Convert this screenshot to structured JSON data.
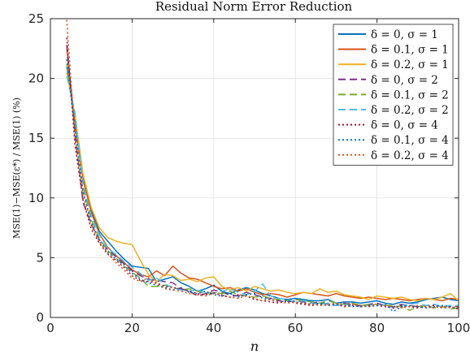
{
  "chart_data": {
    "type": "line",
    "title": "Residual Norm Error Reduction",
    "xlabel": "n",
    "ylabel": "MSE(1)−MSE(ε*) / MSE(1)  (%)",
    "xlim": [
      0,
      100
    ],
    "ylim": [
      0,
      25
    ],
    "xticks": [
      0,
      20,
      40,
      60,
      80,
      100
    ],
    "yticks": [
      0,
      5,
      10,
      15,
      20,
      25
    ],
    "grid": true,
    "legend_position": "top-right",
    "x": [
      4,
      6,
      8,
      10,
      12,
      14,
      16,
      18,
      20,
      22,
      24,
      26,
      28,
      30,
      32,
      34,
      36,
      38,
      40,
      42,
      44,
      46,
      48,
      50,
      52,
      54,
      56,
      58,
      60,
      62,
      64,
      66,
      68,
      70,
      72,
      74,
      76,
      78,
      80,
      82,
      84,
      86,
      88,
      90,
      92,
      94,
      96,
      98,
      100
    ],
    "series": [
      {
        "name": "δ = 0, σ = 1",
        "color": "#0072bd",
        "dash": "solid",
        "values": [
          21.0,
          16.5,
          11.8,
          9.0,
          7.2,
          6.4,
          5.6,
          4.9,
          4.3,
          4.2,
          4.1,
          3.0,
          3.2,
          3.4,
          2.9,
          2.6,
          2.2,
          2.4,
          2.7,
          2.2,
          2.0,
          2.3,
          2.5,
          2.3,
          2.0,
          1.8,
          1.6,
          1.5,
          1.6,
          1.5,
          1.4,
          1.4,
          1.5,
          1.2,
          1.3,
          1.3,
          1.2,
          1.3,
          1.4,
          1.2,
          1.1,
          1.3,
          1.2,
          1.3,
          1.5,
          1.6,
          1.7,
          1.5,
          1.4
        ]
      },
      {
        "name": "δ = 0.1, σ = 1",
        "color": "#d95319",
        "dash": "solid",
        "values": [
          22.5,
          16.2,
          11.5,
          8.8,
          7.0,
          5.9,
          5.2,
          4.6,
          4.0,
          3.6,
          3.4,
          3.9,
          3.5,
          4.3,
          3.7,
          3.3,
          3.2,
          2.9,
          2.6,
          2.4,
          2.5,
          2.2,
          2.4,
          2.1,
          1.9,
          2.0,
          1.9,
          1.7,
          1.9,
          2.1,
          2.0,
          1.9,
          1.8,
          2.0,
          1.8,
          1.7,
          1.6,
          1.7,
          1.6,
          1.5,
          1.6,
          1.5,
          1.4,
          1.5,
          1.6,
          1.5,
          1.4,
          1.6,
          1.5
        ]
      },
      {
        "name": "δ = 0.2, σ = 1",
        "color": "#edb120",
        "dash": "solid",
        "values": [
          20.5,
          17.0,
          12.0,
          9.2,
          7.5,
          6.7,
          6.4,
          6.2,
          6.1,
          4.8,
          3.6,
          3.0,
          3.6,
          3.5,
          3.1,
          3.2,
          3.0,
          3.3,
          3.4,
          2.6,
          2.3,
          2.5,
          2.2,
          2.6,
          2.4,
          2.2,
          2.3,
          2.1,
          2.0,
          2.1,
          2.0,
          2.4,
          2.1,
          2.2,
          1.9,
          1.8,
          1.7,
          1.5,
          1.8,
          1.7,
          1.6,
          1.7,
          1.5,
          1.4,
          1.6,
          1.5,
          1.7,
          2.0,
          1.4
        ]
      },
      {
        "name": "δ = 0, σ = 2",
        "color": "#7e2f8e",
        "dash": "dash",
        "values": [
          22.8,
          15.5,
          9.6,
          7.8,
          6.5,
          5.7,
          5.1,
          4.5,
          3.9,
          3.5,
          3.2,
          3.1,
          3.0,
          2.9,
          2.4,
          2.2,
          1.8,
          2.0,
          2.3,
          2.1,
          1.9,
          1.8,
          2.1,
          1.9,
          1.7,
          1.6,
          1.4,
          1.3,
          1.4,
          1.3,
          1.2,
          1.3,
          1.1,
          1.0,
          1.2,
          1.1,
          1.0,
          1.1,
          1.2,
          1.0,
          0.9,
          1.1,
          1.0,
          0.9,
          1.0,
          1.1,
          0.9,
          1.0,
          0.9
        ]
      },
      {
        "name": "δ = 0.1, σ = 2",
        "color": "#77ac30",
        "dash": "dash",
        "values": [
          21.2,
          16.8,
          10.8,
          8.2,
          6.6,
          5.6,
          5.0,
          4.3,
          3.8,
          3.3,
          2.6,
          2.6,
          2.7,
          2.5,
          2.3,
          2.4,
          2.2,
          2.0,
          2.1,
          2.0,
          2.2,
          1.9,
          1.8,
          1.7,
          1.8,
          1.6,
          1.5,
          1.4,
          1.5,
          1.4,
          1.3,
          1.2,
          1.4,
          1.2,
          1.1,
          1.2,
          1.0,
          1.1,
          1.1,
          1.0,
          1.0,
          0.9,
          0.6,
          0.9,
          1.0,
          0.8,
          0.9,
          0.7,
          0.8
        ]
      },
      {
        "name": "δ = 0.2, σ = 2",
        "color": "#4dbeee",
        "dash": "dash",
        "values": [
          20.2,
          17.2,
          11.2,
          8.5,
          6.9,
          5.8,
          5.3,
          4.7,
          4.2,
          3.7,
          3.1,
          3.3,
          2.8,
          2.5,
          2.3,
          2.2,
          2.3,
          2.1,
          2.0,
          2.2,
          2.4,
          2.1,
          1.9,
          2.2,
          2.8,
          1.8,
          1.6,
          1.5,
          1.3,
          1.4,
          1.2,
          1.1,
          1.2,
          1.0,
          1.1,
          1.0,
          0.9,
          1.0,
          1.1,
          1.0,
          0.8,
          1.0,
          1.1,
          1.2,
          1.0,
          1.1,
          0.9,
          1.0,
          1.0
        ]
      },
      {
        "name": "δ = 0, σ = 4",
        "color": "#a2142f",
        "dash": "dot",
        "values": [
          23.4,
          14.5,
          9.8,
          7.4,
          6.2,
          5.3,
          4.8,
          4.2,
          3.5,
          3.1,
          3.0,
          2.9,
          2.6,
          2.5,
          2.4,
          2.2,
          2.0,
          1.9,
          2.1,
          1.8,
          1.7,
          1.9,
          1.8,
          1.5,
          1.4,
          1.3,
          1.2,
          1.4,
          1.2,
          1.1,
          1.0,
          1.1,
          1.0,
          1.1,
          0.9,
          1.0,
          0.9,
          1.0,
          1.0,
          0.9,
          0.8,
          1.0,
          0.9,
          0.8,
          0.9,
          1.0,
          0.8,
          0.9,
          0.7
        ]
      },
      {
        "name": "δ = 0.1, σ = 4",
        "color": "#0072bd",
        "dash": "dot",
        "values": [
          21.6,
          15.8,
          10.5,
          8.0,
          6.4,
          5.5,
          4.9,
          4.4,
          3.7,
          3.2,
          2.9,
          2.7,
          2.5,
          2.3,
          2.5,
          2.1,
          2.0,
          2.2,
          1.9,
          1.8,
          2.0,
          1.7,
          1.9,
          2.0,
          1.6,
          1.5,
          1.3,
          1.4,
          1.3,
          1.2,
          1.1,
          1.2,
          1.0,
          1.1,
          1.0,
          0.9,
          1.0,
          0.9,
          1.0,
          1.1,
          0.5,
          0.9,
          1.0,
          0.9,
          0.8,
          0.9,
          1.0,
          0.9,
          0.8
        ]
      },
      {
        "name": "δ = 0.2, σ = 4",
        "color": "#d95319",
        "dash": "dot",
        "values": [
          24.9,
          15.0,
          10.2,
          7.7,
          6.3,
          5.4,
          4.6,
          4.0,
          3.3,
          3.0,
          3.3,
          2.8,
          2.4,
          2.3,
          2.2,
          2.0,
          1.9,
          1.8,
          2.0,
          1.9,
          1.7,
          1.6,
          1.8,
          1.6,
          1.4,
          1.5,
          1.3,
          1.2,
          1.3,
          1.2,
          1.1,
          1.0,
          1.1,
          1.2,
          1.0,
          1.1,
          1.0,
          0.9,
          1.1,
          1.0,
          0.9,
          0.8,
          0.9,
          1.0,
          0.9,
          0.8,
          0.9,
          0.8,
          0.9
        ]
      }
    ]
  }
}
